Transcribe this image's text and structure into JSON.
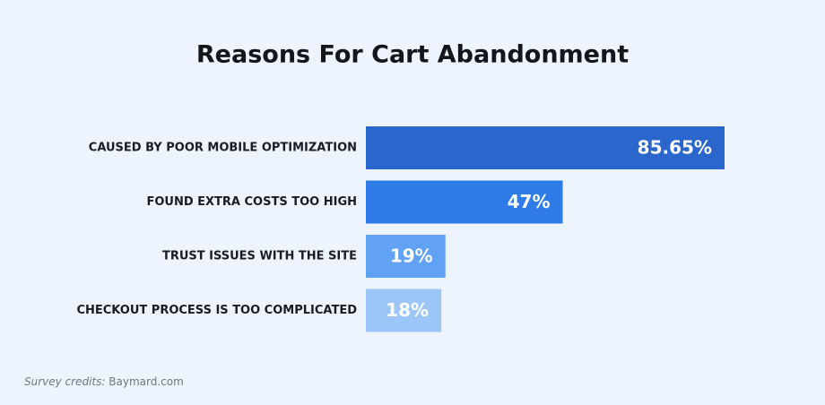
{
  "chart_data": {
    "type": "bar",
    "orientation": "horizontal",
    "title": "Reasons For Cart Abandonment",
    "categories": [
      "CAUSED BY POOR MOBILE OPTIMIZATION",
      "FOUND EXTRA COSTS TOO HIGH",
      "TRUST ISSUES WITH THE SITE",
      "CHECKOUT PROCESS IS TOO COMPLICATED"
    ],
    "values": [
      85.65,
      47,
      19,
      18
    ],
    "value_labels": [
      "85.65%",
      "47%",
      "19%",
      "18%"
    ],
    "colors": [
      "#2a66cc",
      "#2f7be8",
      "#62a2f5",
      "#9cc5f8"
    ]
  },
  "credits": {
    "label": "Survey credits:",
    "source": "Baymard.com"
  }
}
